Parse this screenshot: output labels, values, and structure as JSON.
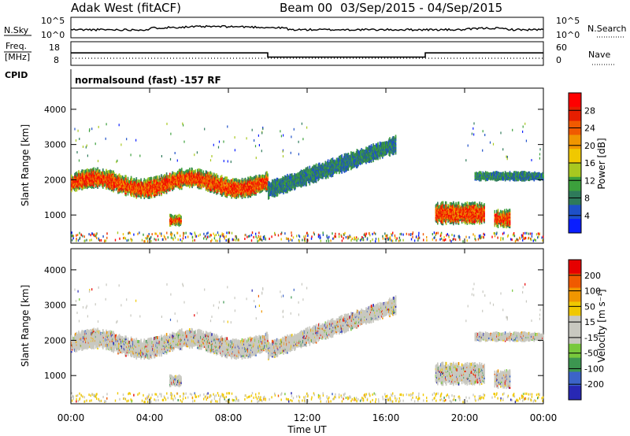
{
  "header": {
    "title": "Adak West (fitACF)",
    "beam_label": "Beam 00",
    "date_range": "03/Sep/2015 - 04/Sep/2015",
    "cpid_text": "normalsound (fast) -157 RF"
  },
  "top_panels": {
    "nsky_label": "N.Sky",
    "nsearch_label": "N.Search",
    "nsky_ticks": [
      "10^5",
      "10^0"
    ],
    "freq_label_line1": "Freq.",
    "freq_label_line2": "[MHz]",
    "freq_ticks": [
      "18",
      "8"
    ],
    "nave_label": "Nave",
    "nave_ticks": [
      "60",
      "0"
    ],
    "cpid_label": "CPID"
  },
  "colorbars": {
    "power": {
      "label": "Power [dB]",
      "ticks": [
        "28",
        "24",
        "20",
        "16",
        "12",
        "8",
        "4"
      ],
      "colors": [
        "#0a1eff",
        "#1e50c8",
        "#2e7a5a",
        "#3ca03c",
        "#a8c820",
        "#f0c800",
        "#f09600",
        "#f05a00",
        "#e61e00",
        "#ff0000"
      ]
    },
    "velocity": {
      "label": "Velocity [m s⁻¹]",
      "ticks": [
        "200",
        "100",
        "50",
        "15",
        "-15",
        "-50",
        "-100",
        "-200"
      ],
      "colors": [
        "#2828b4",
        "#3c64c8",
        "#3c9650",
        "#78c83c",
        "#c8c8c0",
        "#c8c8c0",
        "#f0c800",
        "#f09600",
        "#f05a00",
        "#e60000"
      ]
    }
  },
  "chart_data": [
    {
      "type": "heatmap",
      "title": "Power",
      "ylabel": "Slant Range [km]",
      "xlabel": "",
      "x_ticks": [
        "00:00",
        "04:00",
        "08:00",
        "12:00",
        "16:00",
        "20:00",
        "00:00"
      ],
      "y_ticks": [
        "1000",
        "2000",
        "3000",
        "4000"
      ],
      "ylim": [
        200,
        4600
      ],
      "xlim_hours": [
        0,
        24
      ],
      "echo_regions": [
        {
          "t_start": 0.0,
          "t_end": 10.0,
          "range_center_km": 1900,
          "thickness_km": 450,
          "intensity": "high"
        },
        {
          "t_start": 10.0,
          "t_end": 16.5,
          "range_center_km": 2400,
          "thickness_km": 400,
          "intensity": "low"
        },
        {
          "t_start": 5.0,
          "t_end": 5.6,
          "range_center_km": 850,
          "thickness_km": 250,
          "intensity": "high"
        },
        {
          "t_start": 18.5,
          "t_end": 21.0,
          "range_center_km": 1050,
          "thickness_km": 500,
          "intensity": "high"
        },
        {
          "t_start": 21.5,
          "t_end": 22.3,
          "range_center_km": 900,
          "thickness_km": 400,
          "intensity": "high"
        },
        {
          "t_start": 20.5,
          "t_end": 24.0,
          "range_center_km": 2100,
          "thickness_km": 200,
          "intensity": "low"
        }
      ]
    },
    {
      "type": "heatmap",
      "title": "Velocity",
      "ylabel": "Slant Range [km]",
      "xlabel": "Time UT",
      "x_ticks": [
        "00:00",
        "04:00",
        "08:00",
        "12:00",
        "16:00",
        "20:00",
        "00:00"
      ],
      "y_ticks": [
        "1000",
        "2000",
        "3000",
        "4000"
      ],
      "ylim": [
        200,
        4600
      ],
      "xlim_hours": [
        0,
        24
      ]
    },
    {
      "type": "line",
      "title": "Freq",
      "ylabel": "Freq. [MHz]",
      "ylim": [
        8,
        18
      ],
      "x_hours": [
        0,
        10,
        10,
        18,
        18,
        24
      ],
      "values": [
        14,
        14,
        11,
        11,
        14,
        14
      ]
    }
  ]
}
